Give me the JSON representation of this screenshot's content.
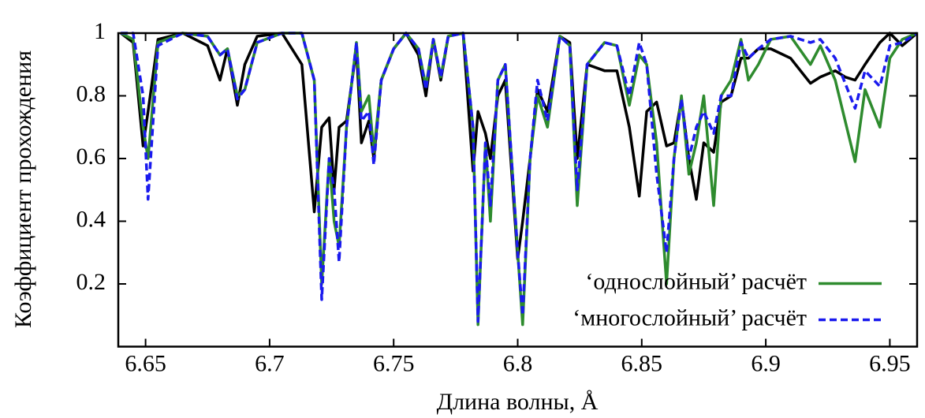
{
  "chart_data": {
    "type": "line",
    "xlabel": "Длина волны, Å",
    "ylabel": "Коэффициент прохождения",
    "x": [
      6.64,
      6.645,
      6.649,
      6.651,
      6.655,
      6.665,
      6.675,
      6.68,
      6.683,
      6.687,
      6.69,
      6.695,
      6.705,
      6.713,
      6.718,
      6.721,
      6.724,
      6.726,
      6.728,
      6.731,
      6.735,
      6.737,
      6.74,
      6.742,
      6.745,
      6.75,
      6.755,
      6.76,
      6.763,
      6.766,
      6.769,
      6.772,
      6.778,
      6.782,
      6.784,
      6.787,
      6.789,
      6.792,
      6.795,
      6.8,
      6.802,
      6.805,
      6.808,
      6.812,
      6.817,
      6.821,
      6.824,
      6.828,
      6.835,
      6.84,
      6.845,
      6.849,
      6.852,
      6.856,
      6.86,
      6.863,
      6.866,
      6.869,
      6.872,
      6.875,
      6.879,
      6.882,
      6.886,
      6.89,
      6.893,
      6.897,
      6.902,
      6.91,
      6.918,
      6.922,
      6.928,
      6.932,
      6.936,
      6.94,
      6.946,
      6.95,
      6.955,
      6.961
    ],
    "series": [
      {
        "color": "#000000",
        "dash": false,
        "values": [
          1,
          0.97,
          0.64,
          0.75,
          0.98,
          1,
          0.96,
          0.85,
          0.95,
          0.77,
          0.9,
          0.99,
          1,
          0.9,
          0.43,
          0.7,
          0.73,
          0.5,
          0.7,
          0.72,
          0.95,
          0.65,
          0.72,
          0.6,
          0.85,
          0.95,
          1,
          0.93,
          0.8,
          0.98,
          0.85,
          0.99,
          1,
          0.56,
          0.75,
          0.68,
          0.6,
          0.8,
          0.85,
          0.28,
          0.4,
          0.6,
          0.82,
          0.75,
          0.99,
          0.97,
          0.6,
          0.9,
          0.88,
          0.88,
          0.7,
          0.48,
          0.75,
          0.78,
          0.64,
          0.65,
          0.79,
          0.6,
          0.47,
          0.65,
          0.62,
          0.78,
          0.8,
          0.92,
          0.92,
          0.95,
          0.95,
          0.92,
          0.84,
          0.86,
          0.88,
          0.86,
          0.85,
          0.9,
          0.97,
          1,
          0.96,
          1
        ]
      },
      {
        "name": "‘однослойный’ расчёт",
        "color": "#2e8b2e",
        "dash": false,
        "values": [
          1,
          0.98,
          0.7,
          0.6,
          0.97,
          1,
          0.99,
          0.93,
          0.95,
          0.8,
          0.82,
          0.97,
          1,
          1,
          0.85,
          0.2,
          0.6,
          0.4,
          0.32,
          0.7,
          0.97,
          0.75,
          0.8,
          0.62,
          0.85,
          0.95,
          1,
          0.95,
          0.83,
          0.98,
          0.86,
          0.99,
          1,
          0.7,
          0.07,
          0.65,
          0.4,
          0.85,
          0.9,
          0.3,
          0.07,
          0.6,
          0.8,
          0.7,
          0.99,
          0.96,
          0.45,
          0.9,
          0.97,
          0.96,
          0.77,
          0.93,
          0.9,
          0.65,
          0.2,
          0.6,
          0.8,
          0.55,
          0.65,
          0.8,
          0.45,
          0.8,
          0.85,
          0.98,
          0.85,
          0.9,
          0.98,
          0.99,
          0.9,
          0.96,
          0.85,
          0.72,
          0.59,
          0.82,
          0.7,
          0.92,
          0.98,
          1
        ]
      },
      {
        "name": "‘многослойный’ расчёт",
        "color": "#1a1aee",
        "dash": true,
        "values": [
          1,
          1,
          0.8,
          0.47,
          0.96,
          1,
          0.99,
          0.93,
          0.95,
          0.79,
          0.82,
          0.97,
          1,
          1,
          0.85,
          0.15,
          0.6,
          0.5,
          0.27,
          0.7,
          0.97,
          0.72,
          0.75,
          0.58,
          0.85,
          0.95,
          1,
          0.95,
          0.82,
          0.98,
          0.86,
          0.99,
          1,
          0.7,
          0.08,
          0.65,
          0.45,
          0.85,
          0.9,
          0.3,
          0.1,
          0.6,
          0.85,
          0.72,
          0.99,
          0.96,
          0.5,
          0.9,
          0.97,
          0.96,
          0.8,
          0.97,
          0.9,
          0.55,
          0.3,
          0.6,
          0.79,
          0.6,
          0.7,
          0.75,
          0.68,
          0.8,
          0.8,
          0.97,
          0.92,
          0.95,
          0.98,
          0.99,
          0.97,
          0.98,
          0.92,
          0.84,
          0.76,
          0.88,
          0.83,
          0.96,
          0.97,
          1
        ]
      }
    ],
    "xlim": [
      6.639,
      6.961
    ],
    "ylim": [
      0,
      1
    ],
    "xticks": [
      6.65,
      6.7,
      6.75,
      6.8,
      6.85,
      6.9,
      6.95
    ],
    "yticks": [
      0.2,
      0.4,
      0.6,
      0.8,
      1
    ],
    "legend": "lower right",
    "grid": false
  }
}
